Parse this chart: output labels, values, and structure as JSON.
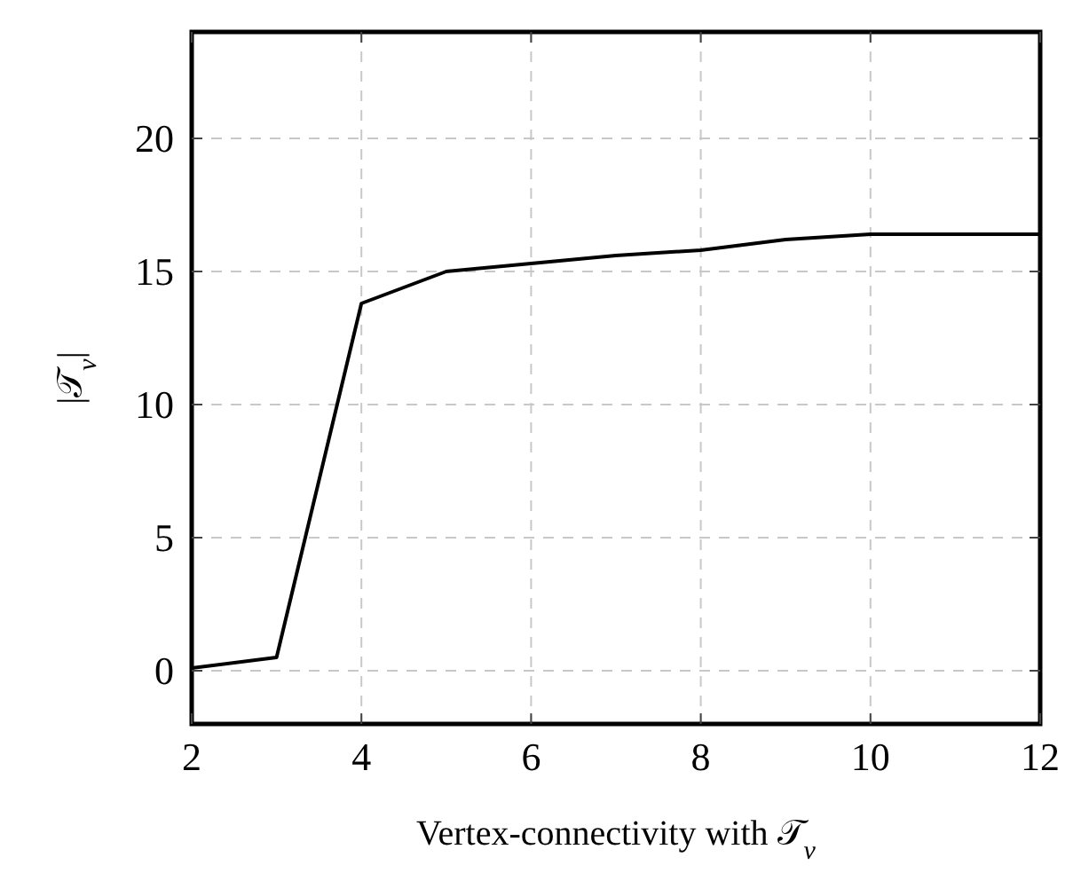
{
  "chart_data": {
    "type": "line",
    "xlabel": "Vertex-connectivity with 𝒯$_{v}$",
    "ylabel": "|𝒯$_{v}$|",
    "x": [
      2,
      3,
      4,
      5,
      6,
      7,
      8,
      9,
      10,
      11,
      12
    ],
    "series": [
      {
        "color": "#000000",
        "values": [
          0.1,
          0.5,
          13.8,
          15.0,
          15.3,
          15.6,
          15.8,
          16.2,
          16.4,
          16.4,
          16.4
        ]
      }
    ],
    "xlim": [
      2,
      12
    ],
    "xticks": [
      2,
      4,
      6,
      8,
      10,
      12
    ],
    "ylim": [
      -2,
      24
    ],
    "yticks": [
      0,
      5,
      10,
      15,
      20
    ],
    "grid": true,
    "line_style": "solid",
    "marker": "none"
  }
}
